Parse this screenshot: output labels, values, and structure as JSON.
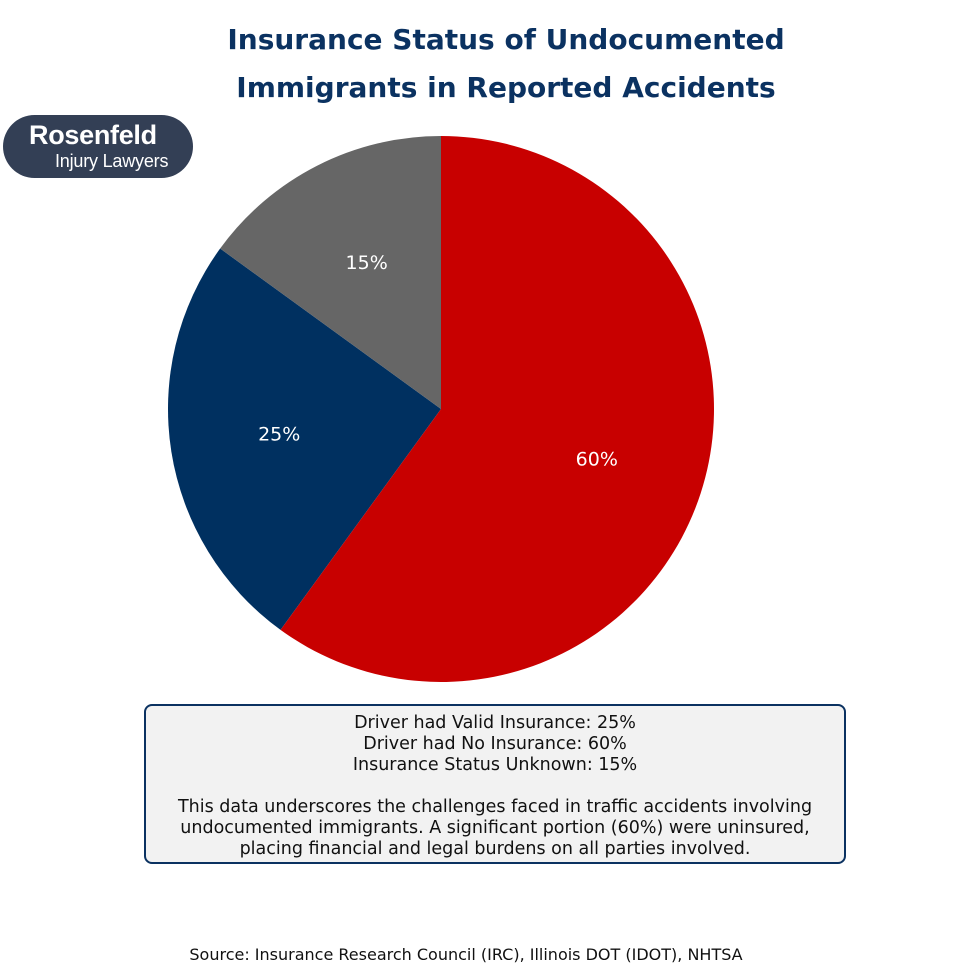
{
  "title": {
    "line1": "Insurance Status of Undocumented",
    "line2": "Immigrants in Reported Accidents"
  },
  "logo": {
    "name": "Rosenfeld",
    "subtitle": "Injury Lawyers"
  },
  "chart_data": {
    "type": "pie",
    "title": "Insurance Status of Undocumented Immigrants in Reported Accidents",
    "slices": [
      {
        "name": "Driver had Valid Insurance",
        "value": 25,
        "label": "25%",
        "color": "#003060"
      },
      {
        "name": "Driver had No Insurance",
        "value": 60,
        "label": "60%",
        "color": "#c80000"
      },
      {
        "name": "Insurance Status Unknown",
        "value": 15,
        "label": "15%",
        "color": "#666666"
      }
    ],
    "start_angle_deg": 144,
    "direction": "counterclockwise"
  },
  "info_box": {
    "lines": [
      "Driver had Valid Insurance: 25%",
      "Driver had No Insurance: 60%",
      "Insurance Status Unknown: 15%"
    ],
    "paragraph": [
      "This data underscores the challenges faced in traffic accidents involving",
      "undocumented immigrants. A significant portion (60%) were uninsured,",
      "placing financial and legal burdens on all parties involved."
    ],
    "background_color": "#f2f2f2",
    "border_color": "#0b3261"
  },
  "source": "Source: Insurance Research Council (IRC), Illinois DOT (IDOT), NHTSA",
  "colors": {
    "title": "#0b3261",
    "logo_background": "#333f55"
  }
}
